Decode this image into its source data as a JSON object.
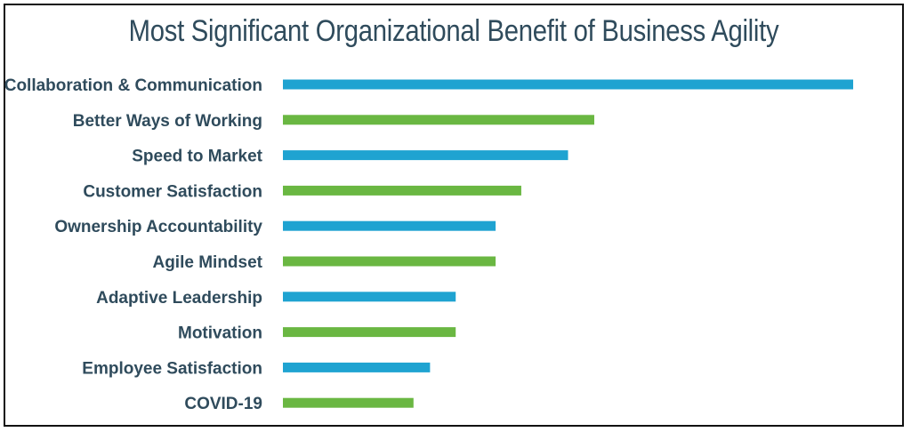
{
  "chart_data": {
    "type": "bar",
    "orientation": "horizontal",
    "title": "Most Significant Organizational Benefit of Business Agility",
    "xlabel": "",
    "ylabel": "",
    "categories": [
      "Collaboration & Communication",
      "Better Ways of Working",
      "Speed to Market",
      "Customer Satisfaction",
      "Ownership Accountability",
      "Agile Mindset",
      "Adaptive Leadership",
      "Motivation",
      "Employee Satisfaction",
      "COVID-19"
    ],
    "values": [
      100,
      54.6,
      50,
      41.8,
      37.3,
      37.3,
      30.3,
      30.3,
      25.8,
      22.9
    ],
    "bar_colors": [
      "#1fa3d1",
      "#6ab742",
      "#1fa3d1",
      "#6ab742",
      "#1fa3d1",
      "#6ab742",
      "#1fa3d1",
      "#6ab742",
      "#1fa3d1",
      "#6ab742"
    ],
    "xlim": [
      0,
      100
    ],
    "grid": false,
    "legend": "none",
    "axis_ticks_visible": false
  }
}
